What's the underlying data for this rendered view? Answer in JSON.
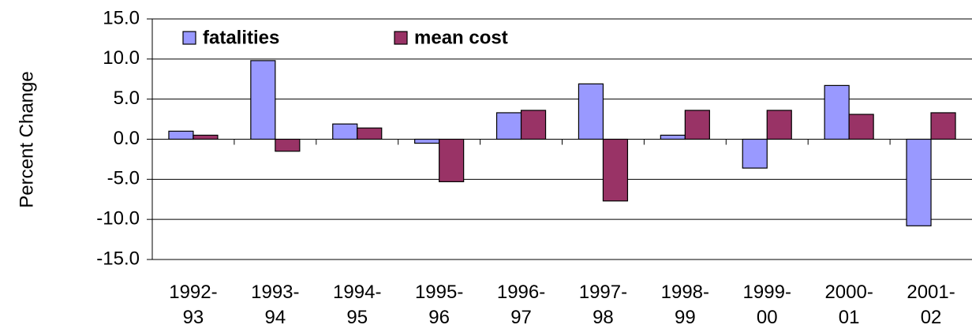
{
  "chart_data": {
    "type": "bar",
    "y_label": "Percent Change",
    "categories": [
      "1992-93",
      "1993-94",
      "1994-95",
      "1995-96",
      "1996-97",
      "1997-98",
      "1998-99",
      "1999-00",
      "2000-01",
      "2001-02"
    ],
    "series": [
      {
        "name": "fatalities",
        "color": "#9999ff",
        "values": [
          1.0,
          9.8,
          1.9,
          -0.5,
          3.3,
          6.9,
          0.5,
          -3.6,
          6.7,
          -10.8
        ]
      },
      {
        "name": "mean cost",
        "color": "#993366",
        "values": [
          0.5,
          -1.5,
          1.4,
          -5.3,
          3.6,
          -7.7,
          3.6,
          3.6,
          3.1,
          3.3
        ]
      }
    ],
    "ylim": [
      -15,
      15
    ],
    "yticks": [
      {
        "value": -15,
        "label": "-15.0"
      },
      {
        "value": -10,
        "label": "-10.0"
      },
      {
        "value": -5,
        "label": "-5.0"
      },
      {
        "value": 0,
        "label": "0.0"
      },
      {
        "value": 5,
        "label": "5.0"
      },
      {
        "value": 10,
        "label": "10.0"
      },
      {
        "value": 15,
        "label": "15.0"
      }
    ],
    "grid": true
  }
}
